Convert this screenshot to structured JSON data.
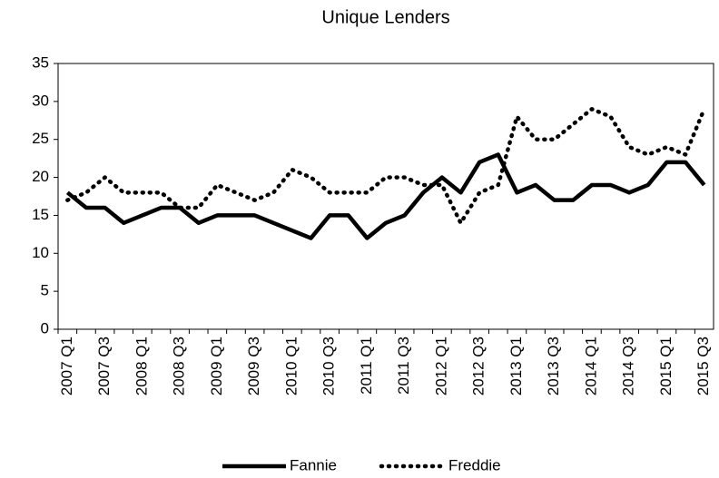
{
  "chart_data": {
    "type": "line",
    "title": "Unique Lenders",
    "categories": [
      "2007 Q1",
      null,
      "2007 Q3",
      null,
      "2008 Q1",
      null,
      "2008 Q3",
      null,
      "2009 Q1",
      null,
      "2009 Q3",
      null,
      "2010 Q1",
      null,
      "2010 Q3",
      null,
      "2011 Q1",
      null,
      "2011 Q3",
      null,
      "2012 Q1",
      null,
      "2012 Q3",
      null,
      "2013 Q1",
      null,
      "2013 Q3",
      null,
      "2014 Q1",
      null,
      "2014 Q3",
      null,
      "2015 Q1",
      null,
      "2015 Q3"
    ],
    "series": [
      {
        "name": "Fannie",
        "color": "#000000",
        "style": "solid",
        "values": [
          18,
          16,
          16,
          14,
          15,
          16,
          16,
          14,
          15,
          15,
          15,
          14,
          13,
          12,
          15,
          15,
          12,
          14,
          15,
          18,
          20,
          18,
          22,
          23,
          18,
          19,
          17,
          17,
          19,
          19,
          18,
          19,
          22,
          22,
          19
        ]
      },
      {
        "name": "Freddie",
        "color": "#000000",
        "style": "dotted",
        "values": [
          17,
          18,
          20,
          18,
          18,
          18,
          16,
          16,
          19,
          18,
          17,
          18,
          21,
          20,
          18,
          18,
          18,
          20,
          20,
          19,
          19,
          14,
          18,
          19,
          28,
          25,
          25,
          27,
          29,
          28,
          24,
          23,
          24,
          23,
          29
        ]
      }
    ],
    "ylim": [
      0,
      35
    ],
    "yticks": [
      0,
      5,
      10,
      15,
      20,
      25,
      30,
      35
    ],
    "grid": false,
    "legend": "bottom"
  }
}
